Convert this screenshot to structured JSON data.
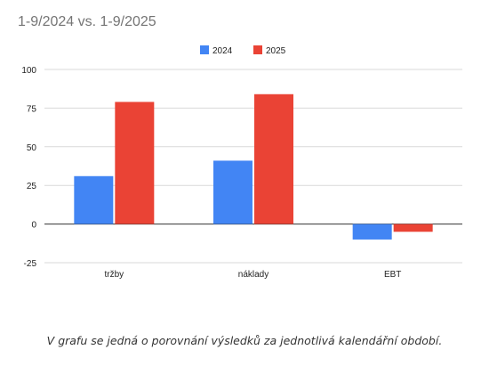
{
  "chart_data": {
    "type": "bar",
    "title": "1-9/2024 vs. 1-9/2025",
    "categories": [
      "tržby",
      "náklady",
      "EBT"
    ],
    "series": [
      {
        "name": "2024",
        "color": "#4285f4",
        "values": [
          31,
          41,
          -10
        ]
      },
      {
        "name": "2025",
        "color": "#ea4335",
        "values": [
          79,
          84,
          -5
        ]
      }
    ],
    "ylim": [
      -25,
      100
    ],
    "yticks": [
      100,
      75,
      50,
      25,
      0,
      -25
    ],
    "grid": true,
    "legend_position": "top-center",
    "xlabel": "",
    "ylabel": ""
  },
  "caption": "V grafu se jedná o porovnání výsledků za jednotlivá kalendářní období."
}
